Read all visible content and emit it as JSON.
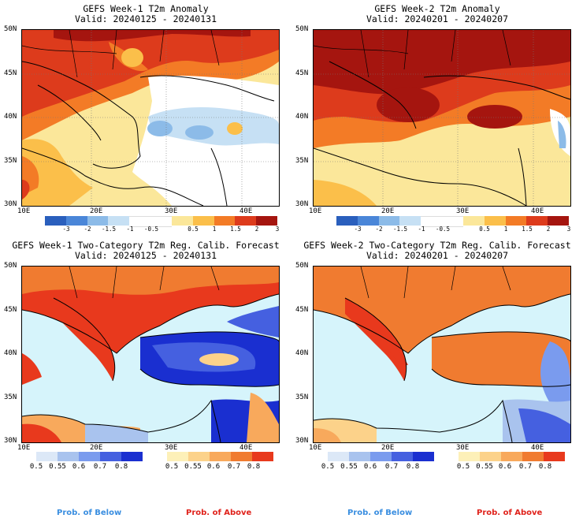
{
  "panels": [
    {
      "title": "GEFS Week-1 T2m Anomaly",
      "valid": "Valid: 20240125 - 20240131",
      "lat_labels": [
        "50N",
        "45N",
        "40N",
        "35N",
        "30N"
      ],
      "lon_labels": [
        "10E",
        "20E",
        "30E",
        "40E"
      ],
      "colorbar_ticks": [
        "-3",
        "-2",
        "-1.5",
        "-1",
        "-0.5",
        "0.5",
        "1",
        "1.5",
        "2",
        "3"
      ]
    },
    {
      "title": "GEFS Week-2 T2m Anomaly",
      "valid": "Valid: 20240201 - 20240207",
      "lat_labels": [
        "50N",
        "45N",
        "40N",
        "35N",
        "30N"
      ],
      "lon_labels": [
        "10E",
        "20E",
        "30E",
        "40E"
      ],
      "colorbar_ticks": [
        "-3",
        "-2",
        "-1.5",
        "-1",
        "-0.5",
        "0.5",
        "1",
        "1.5",
        "2",
        "3"
      ]
    },
    {
      "title": "GEFS Week-1 Two-Category T2m Reg. Calib. Forecast",
      "valid": "Valid: 20240125 - 20240131",
      "lat_labels": [
        "50N",
        "45N",
        "40N",
        "35N",
        "30N"
      ],
      "lon_labels": [
        "10E",
        "20E",
        "30E",
        "40E"
      ],
      "below_ticks": [
        "0.5",
        "0.55",
        "0.6",
        "0.7",
        "0.8"
      ],
      "above_ticks": [
        "0.5",
        "0.55",
        "0.6",
        "0.7",
        "0.8"
      ]
    },
    {
      "title": "GEFS Week-2 Two-Category T2m Reg. Calib. Forecast",
      "valid": "Valid: 20240201 - 20240207",
      "lat_labels": [
        "50N",
        "45N",
        "40N",
        "35N",
        "30N"
      ],
      "lon_labels": [
        "10E",
        "20E",
        "30E",
        "40E"
      ],
      "below_ticks": [
        "0.5",
        "0.55",
        "0.6",
        "0.7",
        "0.8"
      ],
      "above_ticks": [
        "0.5",
        "0.55",
        "0.6",
        "0.7",
        "0.8"
      ]
    }
  ],
  "legend": {
    "prob_below": "Prob. of Below",
    "prob_above": "Prob. of Above"
  },
  "colors": {
    "anomaly_scale": [
      "#2a5fbd",
      "#4a86d8",
      "#8cbbe8",
      "#c6e0f4",
      "#ffffff",
      "#ffffff",
      "#fbe79a",
      "#fbbf4a",
      "#f37b26",
      "#dd3b1c",
      "#a5150f"
    ],
    "below_scale": [
      "#dce8f7",
      "#a9c3ee",
      "#7a9bee",
      "#4560e0",
      "#1a2fd0"
    ],
    "above_scale": [
      "#fdf0b8",
      "#fcd28a",
      "#f8a95c",
      "#f07b30",
      "#e8391d"
    ],
    "prob_below_label": "#3a8ee0",
    "prob_above_label": "#e0231c",
    "sea": "#d6f4fb"
  }
}
